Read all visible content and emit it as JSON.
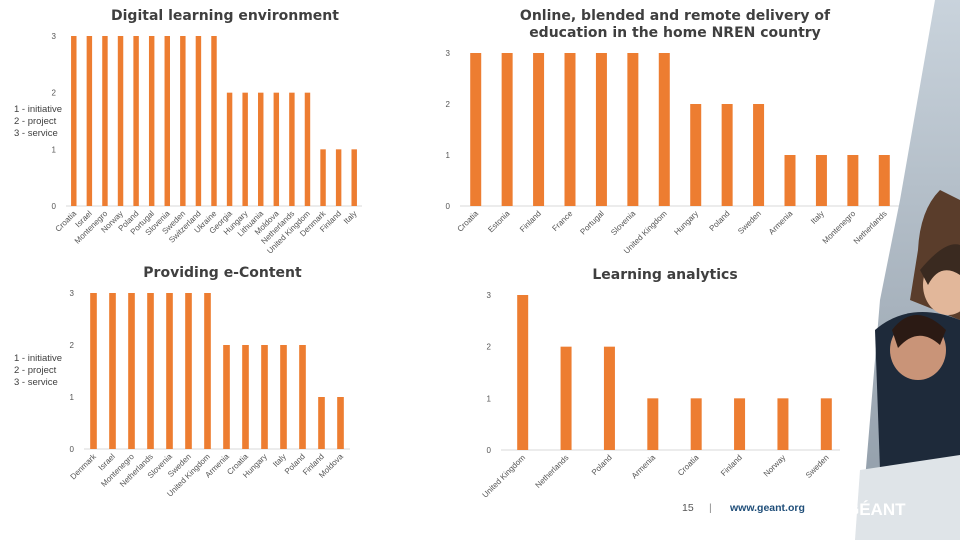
{
  "legend": [
    "1 - initiative",
    "2 - project",
    "3 - service"
  ],
  "footer": {
    "page_number": "15",
    "separator": "|",
    "url": "www.geant.org",
    "logo_text": "GÉANT"
  },
  "colors": {
    "bar": "#ED7D31",
    "axis": "#d9d9d9",
    "url": "#1f4e79"
  },
  "chart_data": [
    {
      "type": "bar",
      "title": "Digital learning environment",
      "categories": [
        "Croatia",
        "Israel",
        "Montenegro",
        "Norway",
        "Poland",
        "Portugal",
        "Slovenia",
        "Sweden",
        "Switzerland",
        "Ukraine",
        "Georgia",
        "Hungary",
        "Lithuania",
        "Moldova",
        "Netherlands",
        "United Kingdom",
        "Denmark",
        "Finland",
        "Italy"
      ],
      "values": [
        3,
        3,
        3,
        3,
        3,
        3,
        3,
        3,
        3,
        3,
        2,
        2,
        2,
        2,
        2,
        2,
        1,
        1,
        1
      ],
      "yticks": [
        "0",
        "1",
        "2",
        "3"
      ],
      "ylim": [
        0,
        3
      ]
    },
    {
      "type": "bar",
      "title": "Online, blended and remote delivery of education in the home NREN country",
      "categories": [
        "Croatia",
        "Estonia",
        "Finland",
        "France",
        "Portugal",
        "Slovenia",
        "United Kingdom",
        "Hungary",
        "Poland",
        "Sweden",
        "Armenia",
        "Italy",
        "Montenegro",
        "Netherlands"
      ],
      "values": [
        3,
        3,
        3,
        3,
        3,
        3,
        3,
        2,
        2,
        2,
        1,
        1,
        1,
        1
      ],
      "yticks": [
        "0",
        "1",
        "2",
        "3"
      ],
      "ylim": [
        0,
        3
      ]
    },
    {
      "type": "bar",
      "title": "Providing e-Content",
      "categories": [
        "Denmark",
        "Israel",
        "Montenegro",
        "Netherlands",
        "Slovenia",
        "Sweden",
        "United Kingdom",
        "Armenia",
        "Croatia",
        "Hungary",
        "Italy",
        "Poland",
        "Finland",
        "Moldova"
      ],
      "values": [
        3,
        3,
        3,
        3,
        3,
        3,
        3,
        2,
        2,
        2,
        2,
        2,
        1,
        1
      ],
      "yticks": [
        "0",
        "1",
        "2",
        "3"
      ],
      "ylim": [
        0,
        3
      ]
    },
    {
      "type": "bar",
      "title": "Learning analytics",
      "categories": [
        "United Kingdom",
        "Netherlands",
        "Poland",
        "Armenia",
        "Croatia",
        "Finland",
        "Norway",
        "Sweden"
      ],
      "values": [
        3,
        2,
        2,
        1,
        1,
        1,
        1,
        1
      ],
      "yticks": [
        "0",
        "1",
        "2",
        "3"
      ],
      "ylim": [
        0,
        3
      ]
    }
  ]
}
